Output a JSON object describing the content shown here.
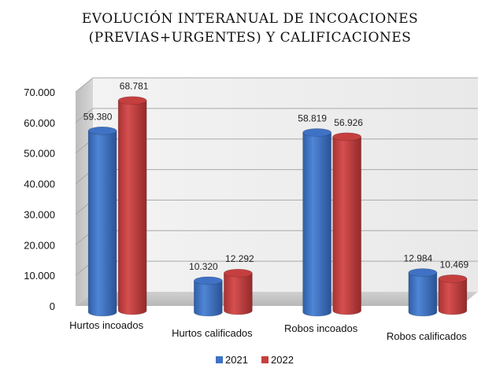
{
  "chart_data": {
    "type": "bar",
    "title_line1": "EVOLUCIÓN INTERANUAL DE INCOACIONES",
    "title_line2": "(PREVIAS+URGENTES) Y CALIFICACIONES",
    "categories": [
      "Hurtos incoados",
      "Hurtos calificados",
      "Robos incoados",
      "Robos calificados"
    ],
    "series": [
      {
        "name": "2021",
        "values": [
          59380,
          10320,
          58819,
          12984
        ],
        "labels": [
          "59.380",
          "10.320",
          "58.819",
          "12.984"
        ],
        "color": "#3f72c4"
      },
      {
        "name": "2022",
        "values": [
          68781,
          12292,
          56926,
          10469
        ],
        "labels": [
          "68.781",
          "12.292",
          "56.926",
          "10.469"
        ],
        "color": "#c53f3f"
      }
    ],
    "yticks": [
      "0",
      "10.000",
      "20.000",
      "30.000",
      "40.000",
      "50.000",
      "60.000",
      "70.000"
    ],
    "ylim": [
      0,
      70000
    ],
    "grid": true,
    "legend_position": "bottom",
    "style": "3d-cylinder"
  }
}
